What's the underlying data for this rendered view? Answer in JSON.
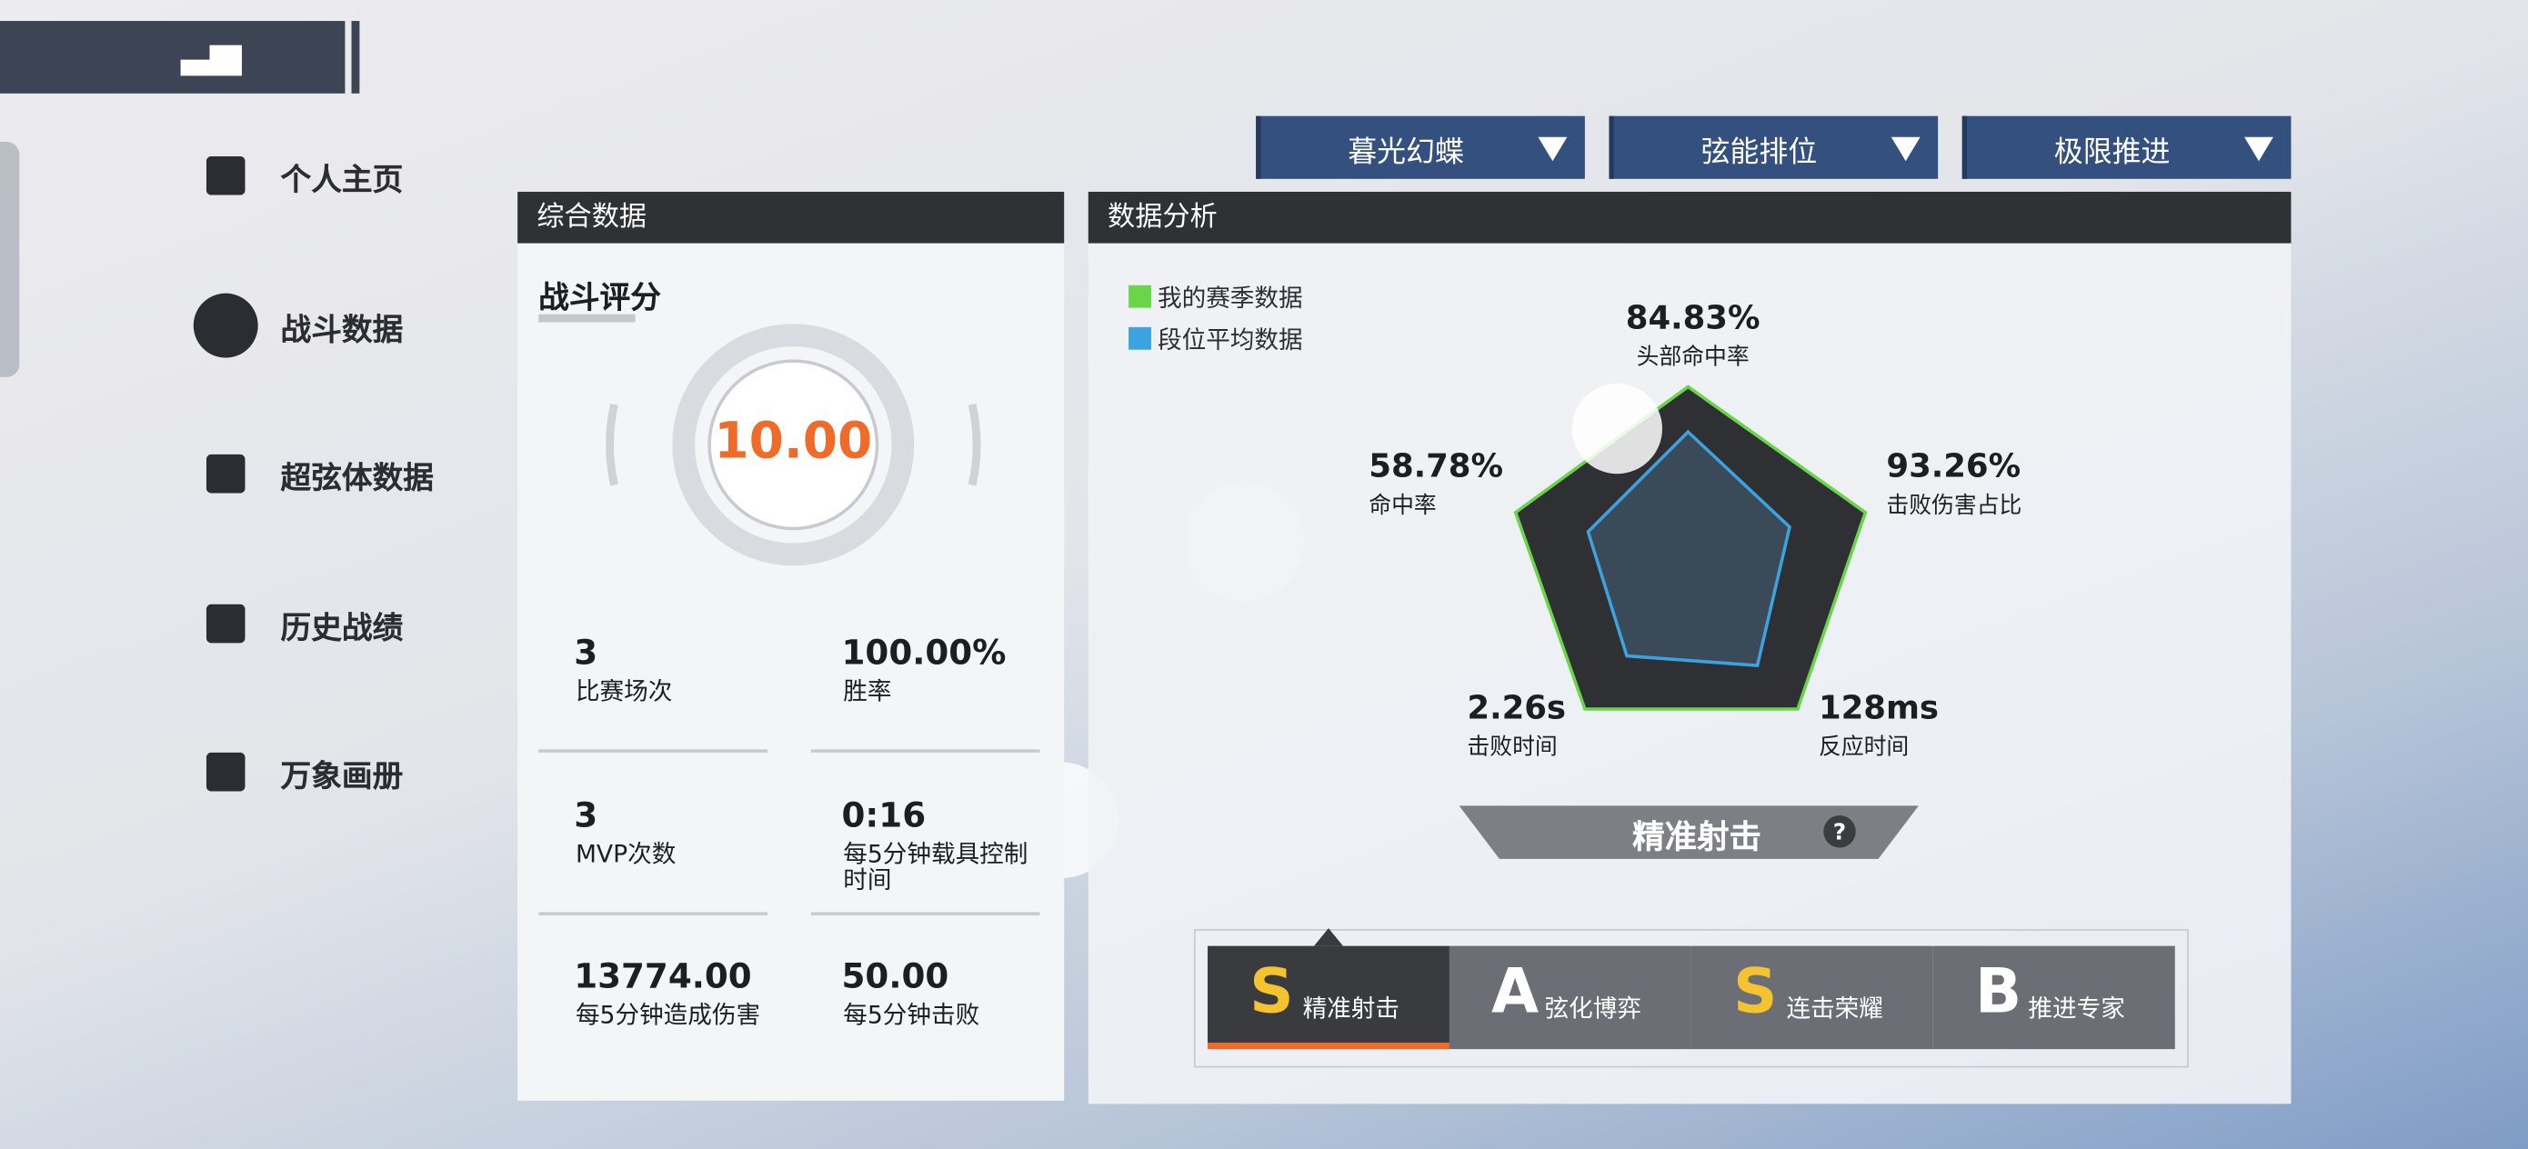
{
  "sidebar": [
    "个人主页",
    "战斗数据",
    "超弦体数据",
    "历史战绩",
    "万象画册"
  ],
  "filters": [
    "暮光幻蝶",
    "弦能排位",
    "极限推进"
  ],
  "overview": {
    "title": "综合数据",
    "score_label": "战斗评分",
    "score": "10.00",
    "stats": [
      {
        "value": "3",
        "label": "比赛场次"
      },
      {
        "value": "100.00%",
        "label": "胜率"
      },
      {
        "value": "3",
        "label": "MVP次数"
      },
      {
        "value": "0:16",
        "label": "每5分钟载具控制时间"
      },
      {
        "value": "13774.00",
        "label": "每5分钟造成伤害"
      },
      {
        "value": "50.00",
        "label": "每5分钟击败"
      }
    ]
  },
  "analysis": {
    "title": "数据分析",
    "legend": [
      "我的赛季数据",
      "段位平均数据"
    ],
    "radar": [
      {
        "value": "84.83%",
        "label": "头部命中率"
      },
      {
        "value": "93.26%",
        "label": "击败伤害占比"
      },
      {
        "value": "128ms",
        "label": "反应时间"
      },
      {
        "value": "2.26s",
        "label": "击败时间"
      },
      {
        "value": "58.78%",
        "label": "命中率"
      }
    ],
    "style": "精准射击",
    "badges": [
      {
        "grade": "S",
        "name": "精准射击"
      },
      {
        "grade": "A",
        "name": "弦化博弈"
      },
      {
        "grade": "S",
        "name": "连击荣耀"
      },
      {
        "grade": "B",
        "name": "推进专家"
      }
    ]
  }
}
